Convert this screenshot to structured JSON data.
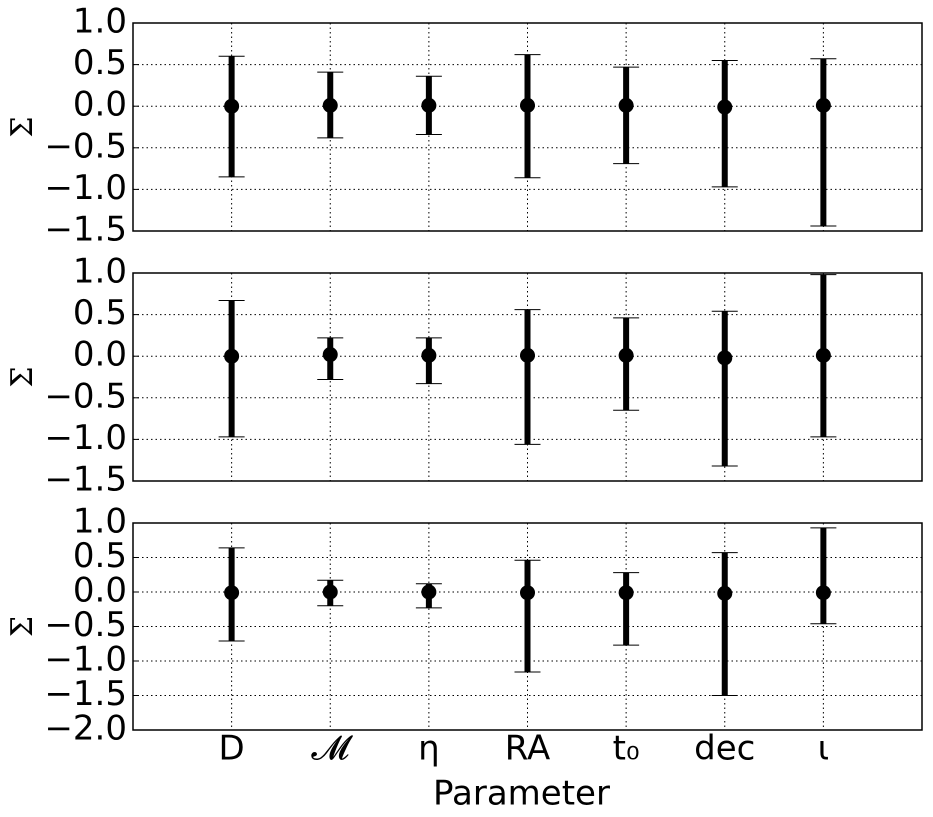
{
  "chart_data": [
    {
      "type": "errorbar",
      "y_label": "Σ",
      "categories": [
        null,
        null,
        null,
        null,
        null,
        null,
        null
      ],
      "values": [
        0,
        0.01,
        0.01,
        0.01,
        0.01,
        -0.01,
        0.01
      ],
      "lows": [
        -0.85,
        -0.38,
        -0.34,
        -0.86,
        -0.69,
        -0.97,
        -1.44
      ],
      "highs": [
        0.6,
        0.41,
        0.36,
        0.62,
        0.47,
        0.55,
        0.57
      ],
      "color": "#000000",
      "grid": true,
      "ylim": [
        -1.5,
        1.0
      ],
      "yticks": [
        {
          "value": 1,
          "label": "1.0"
        },
        {
          "value": 0.5,
          "label": "0.5"
        },
        {
          "value": 0,
          "label": "0.0"
        },
        {
          "value": -0.5,
          "label": "−0.5"
        },
        {
          "value": -1,
          "label": "−1.0"
        },
        {
          "value": -1.5,
          "label": "−1.5"
        }
      ]
    },
    {
      "type": "errorbar",
      "y_label": "Σ",
      "categories": [
        null,
        null,
        null,
        null,
        null,
        null,
        null
      ],
      "values": [
        0,
        0.02,
        0.01,
        0.01,
        0.01,
        -0.02,
        0.01
      ],
      "lows": [
        -0.97,
        -0.28,
        -0.33,
        -1.06,
        -0.65,
        -1.32,
        -0.97
      ],
      "highs": [
        0.67,
        0.22,
        0.22,
        0.56,
        0.46,
        0.54,
        0.98
      ],
      "color": "#000000",
      "grid": true,
      "ylim": [
        -1.5,
        1.0
      ],
      "yticks": [
        {
          "value": 1,
          "label": "1.0"
        },
        {
          "value": 0.5,
          "label": "0.5"
        },
        {
          "value": 0,
          "label": "0.0"
        },
        {
          "value": -0.5,
          "label": "−0.5"
        },
        {
          "value": -1,
          "label": "−1.0"
        },
        {
          "value": -1.5,
          "label": "−1.5"
        }
      ]
    },
    {
      "type": "errorbar",
      "y_label": "Σ",
      "x_label": "Parameter",
      "categories": [
        "D",
        "𝓜",
        "η",
        "RA",
        "t₀",
        "dec",
        "ι"
      ],
      "values": [
        -0.01,
        0,
        0,
        -0.01,
        -0.01,
        -0.02,
        -0.01
      ],
      "lows": [
        -0.71,
        -0.2,
        -0.23,
        -1.16,
        -0.77,
        -1.5,
        -0.46
      ],
      "highs": [
        0.64,
        0.17,
        0.12,
        0.46,
        0.28,
        0.57,
        0.93
      ],
      "color": "#000000",
      "grid": true,
      "ylim": [
        -2.0,
        1.0
      ],
      "yticks": [
        {
          "value": 1,
          "label": "1.0"
        },
        {
          "value": 0.5,
          "label": "0.5"
        },
        {
          "value": 0,
          "label": "0.0"
        },
        {
          "value": -0.5,
          "label": "−0.5"
        },
        {
          "value": -1,
          "label": "−1.0"
        },
        {
          "value": -1.5,
          "label": "−1.5"
        },
        {
          "value": -2,
          "label": "−2.0"
        }
      ]
    }
  ]
}
